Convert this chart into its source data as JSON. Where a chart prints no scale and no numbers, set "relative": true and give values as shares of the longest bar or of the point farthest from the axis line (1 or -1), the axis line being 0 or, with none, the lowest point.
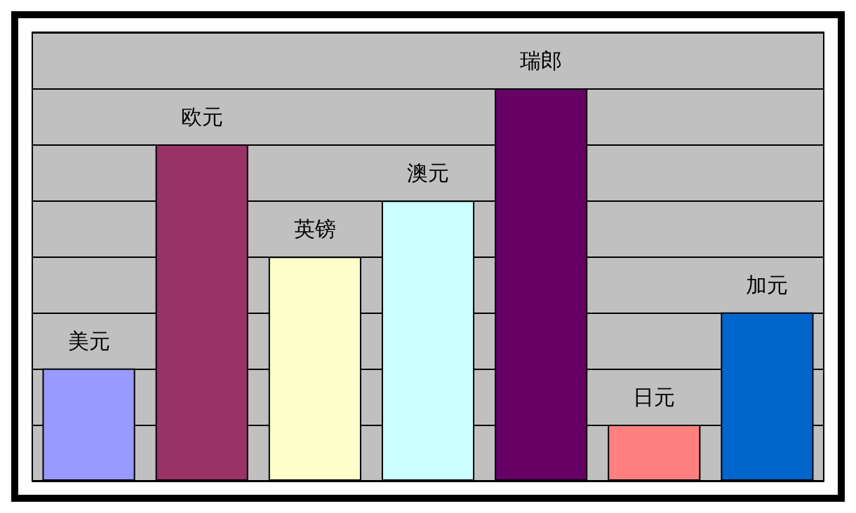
{
  "chart_data": {
    "type": "bar",
    "relative": true,
    "grid": "y",
    "data_labels": false,
    "categories": [
      "美元",
      "欧元",
      "英镑",
      "澳元",
      "瑞郎",
      "日元",
      "加元"
    ],
    "values": [
      0.286,
      0.857,
      0.571,
      0.714,
      1,
      0.143,
      0.429
    ],
    "colors": [
      "#9999ff",
      "#993366",
      "#ffffcc",
      "#ccffff",
      "#660066",
      "#ff8080",
      "#0066cc"
    ],
    "tick_labels": false
  }
}
